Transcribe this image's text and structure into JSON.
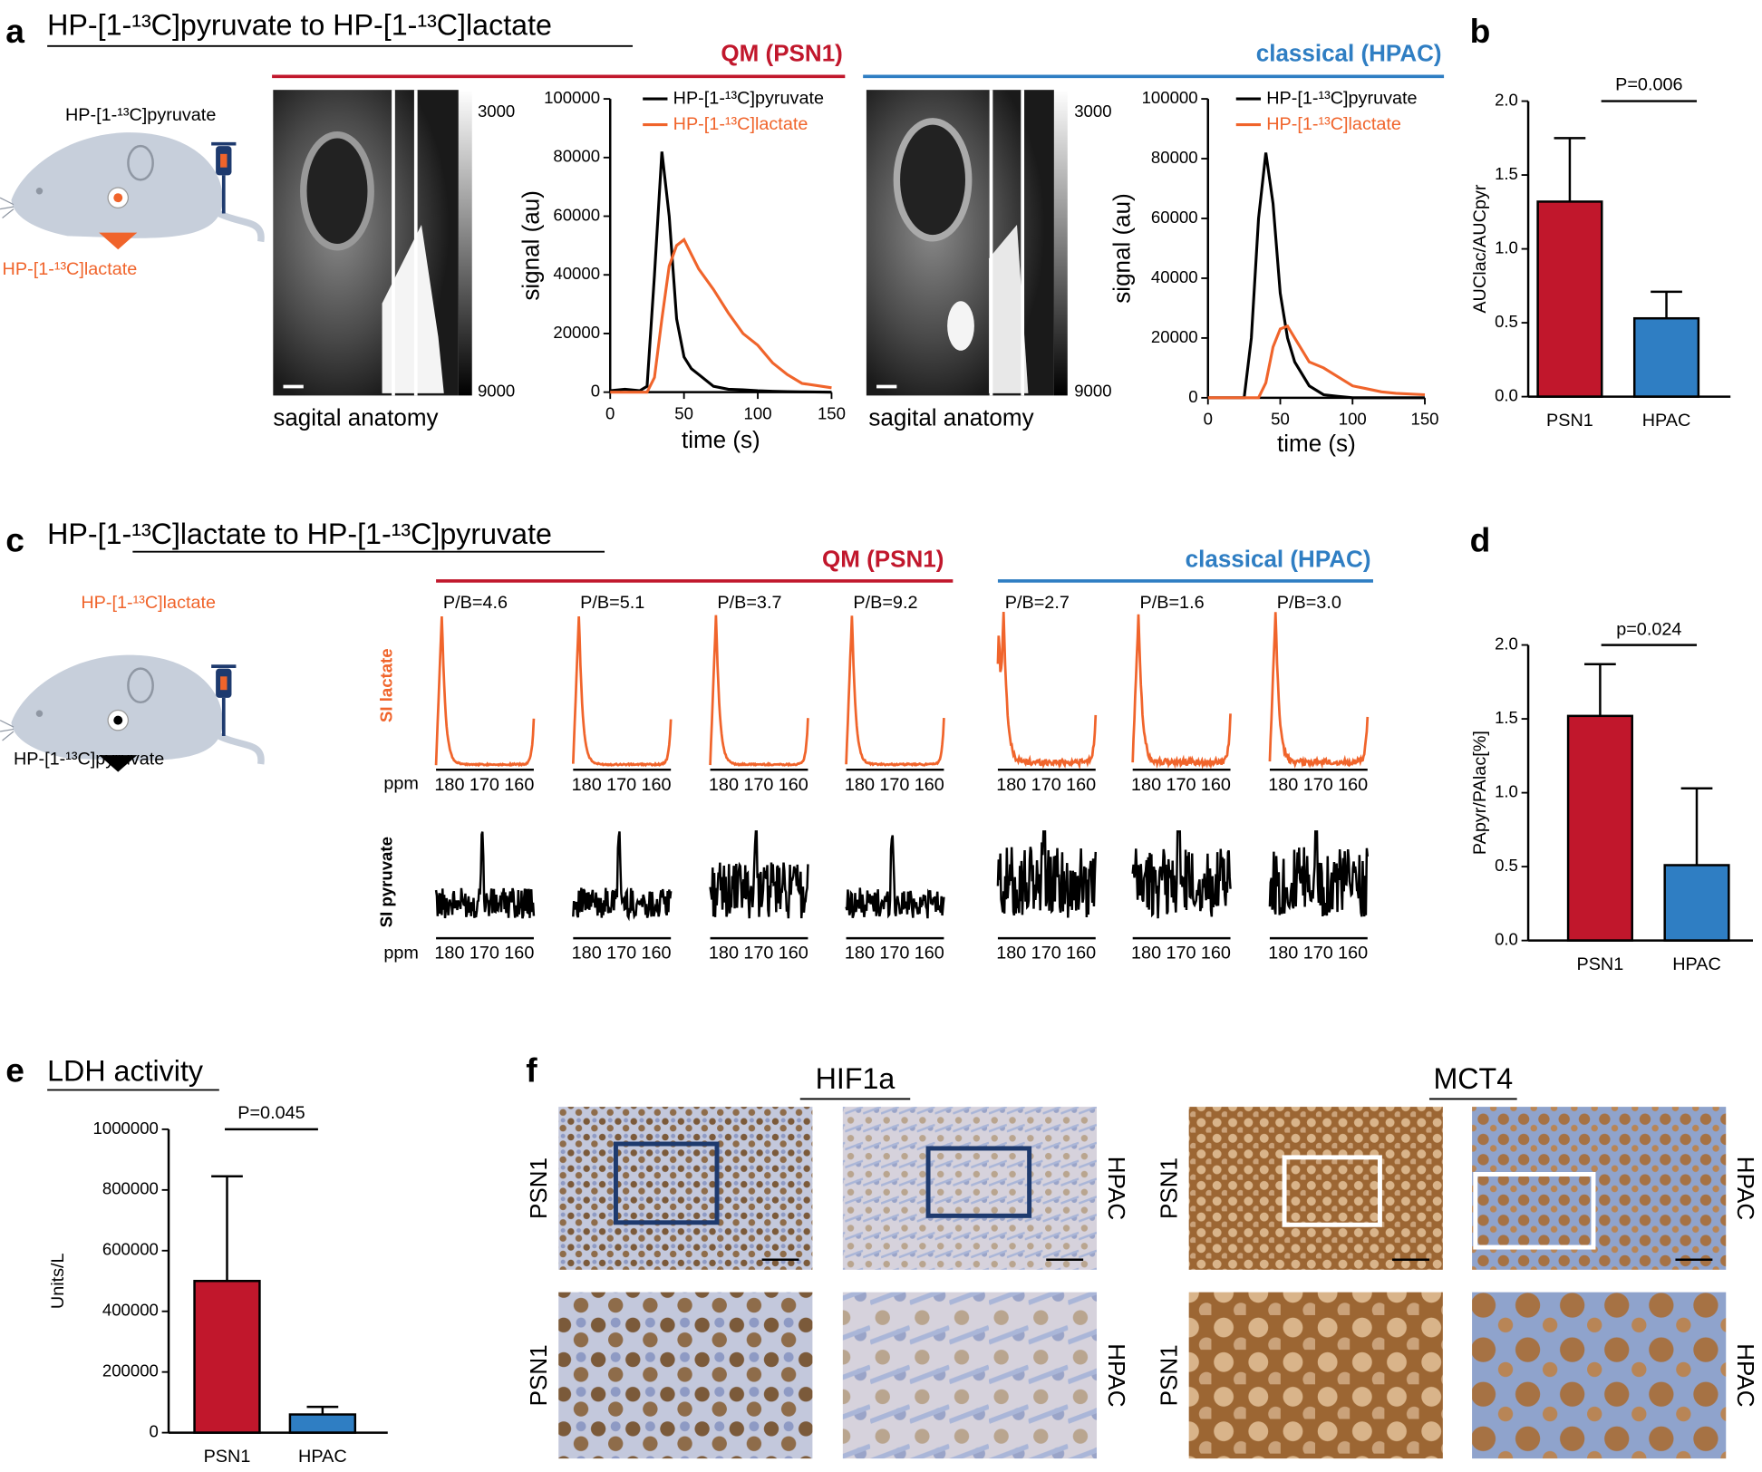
{
  "chart_data": [
    {
      "type": "line",
      "title": "QM (PSN1)",
      "title_color": "#c1172c",
      "xlabel": "time (s)",
      "ylabel": "signal (au)",
      "x": [
        0,
        10,
        20,
        25,
        30,
        35,
        40,
        45,
        50,
        55,
        60,
        70,
        80,
        90,
        100,
        110,
        120,
        130,
        150
      ],
      "series": [
        {
          "name": "HP-[1-¹³C]pyruvate",
          "color": "#000000",
          "values": [
            500,
            1000,
            500,
            2000,
            40000,
            82000,
            60000,
            25000,
            12000,
            8000,
            6000,
            2000,
            1000,
            800,
            500,
            300,
            200,
            100,
            0
          ]
        },
        {
          "name": "HP-[1-¹³C]lactate",
          "color": "#f0642b",
          "values": [
            0,
            0,
            0,
            0,
            5000,
            25000,
            43000,
            50000,
            52000,
            47000,
            42000,
            35000,
            27000,
            20000,
            16000,
            10000,
            6000,
            3000,
            1500
          ]
        }
      ],
      "xlim": [
        0,
        150
      ],
      "xticks": [
        0,
        50,
        100,
        150
      ],
      "ylim": [
        0,
        100000
      ],
      "yticks": [
        0,
        20000,
        40000,
        60000,
        80000,
        100000
      ]
    },
    {
      "type": "line",
      "title": "classical (HPAC)",
      "title_color": "#2f7ec3",
      "xlabel": "time (s)",
      "ylabel": "signal (au)",
      "x": [
        0,
        10,
        20,
        25,
        30,
        35,
        40,
        45,
        50,
        55,
        60,
        70,
        80,
        90,
        100,
        110,
        120,
        130,
        150
      ],
      "series": [
        {
          "name": "HP-[1-¹³C]pyruvate",
          "color": "#000000",
          "values": [
            0,
            0,
            0,
            0,
            20000,
            60000,
            82000,
            65000,
            35000,
            20000,
            12000,
            4000,
            1000,
            500,
            0,
            0,
            0,
            0,
            0
          ]
        },
        {
          "name": "HP-[1-¹³C]lactate",
          "color": "#f0642b",
          "values": [
            0,
            0,
            0,
            0,
            0,
            0,
            5000,
            17000,
            23000,
            24000,
            20000,
            12000,
            10000,
            7000,
            4000,
            3000,
            2000,
            1500,
            1000
          ]
        }
      ],
      "xlim": [
        0,
        150
      ],
      "xticks": [
        0,
        50,
        100,
        150
      ],
      "ylim": [
        0,
        100000
      ],
      "yticks": [
        0,
        20000,
        40000,
        60000,
        80000,
        100000
      ]
    },
    {
      "type": "bar",
      "categories": [
        "PSN1",
        "HPAC"
      ],
      "values": [
        1.32,
        0.53
      ],
      "errors": [
        0.43,
        0.18
      ],
      "colors": [
        "#c1172c",
        "#2f7ec3"
      ],
      "ylabel": "AUClac/AUCpyr",
      "annotation": "P=0.006",
      "ylim": [
        0,
        2
      ],
      "yticks": [
        {
          "value": 0,
          "label": "0.0"
        },
        0.5,
        {
          "value": 1,
          "label": "1.0"
        },
        1.5,
        {
          "value": 2,
          "label": "2.0"
        }
      ]
    },
    {
      "type": "bar",
      "categories": [
        "PSN1",
        "HPAC"
      ],
      "values": [
        1.52,
        0.51
      ],
      "errors": [
        0.35,
        0.52
      ],
      "colors": [
        "#c1172c",
        "#2f7ec3"
      ],
      "ylabel": "PApyr/PAlac[%]",
      "annotation": "p=0.024",
      "ylim": [
        0,
        2
      ],
      "yticks": [
        {
          "value": 0,
          "label": "0.0"
        },
        0.5,
        {
          "value": 1,
          "label": "1.0"
        },
        1.5,
        {
          "value": 2,
          "label": "2.0"
        }
      ]
    },
    {
      "type": "bar",
      "categories": [
        "PSN1",
        "HPAC"
      ],
      "values": [
        500000,
        60000
      ],
      "errors": [
        345000,
        25000
      ],
      "colors": [
        "#c1172c",
        "#2f7ec3"
      ],
      "ylabel": "Units/L",
      "annotation": "P=0.045",
      "ylim": [
        0,
        1000000
      ],
      "yticks": [
        0,
        200000,
        400000,
        600000,
        800000,
        1000000
      ]
    }
  ],
  "panels": {
    "a": {
      "label": "a",
      "title": "HP-[1-¹³C]pyruvate to HP-[1-¹³C]lactate",
      "pyruvate": "HP-[1-¹³C]pyruvate",
      "lactate": "HP-[1-¹³C]lactate",
      "anatomy": "sagital anatomy",
      "colorbar": [
        3000,
        9000
      ]
    },
    "b": {
      "label": "b"
    },
    "c": {
      "label": "c",
      "title": "HP-[1-¹³C]lactate to HP-[1-¹³C]pyruvate",
      "lactate": "HP-[1-¹³C]lactate",
      "pyruvate": "HP-[1-¹³C]pyruvate",
      "groups": [
        "QM (PSN1)",
        "classical (HPAC)"
      ],
      "pb": [
        "P/B=4.6",
        "P/B=5.1",
        "P/B=3.7",
        "P/B=9.2",
        "P/B=2.7",
        "P/B=1.6",
        "P/B=3.0"
      ],
      "lactate_row": "SI lactate",
      "pyruvate_row": "SI pyruvate",
      "ppm": "ppm",
      "ppm_ticks": [
        180,
        170,
        160
      ]
    },
    "d": {
      "label": "d"
    },
    "e": {
      "label": "e",
      "title": "LDH activity"
    },
    "f": {
      "label": "f",
      "markers": [
        "HIF1a",
        "MCT4"
      ],
      "lines": [
        "PSN1",
        "HPAC"
      ]
    }
  }
}
